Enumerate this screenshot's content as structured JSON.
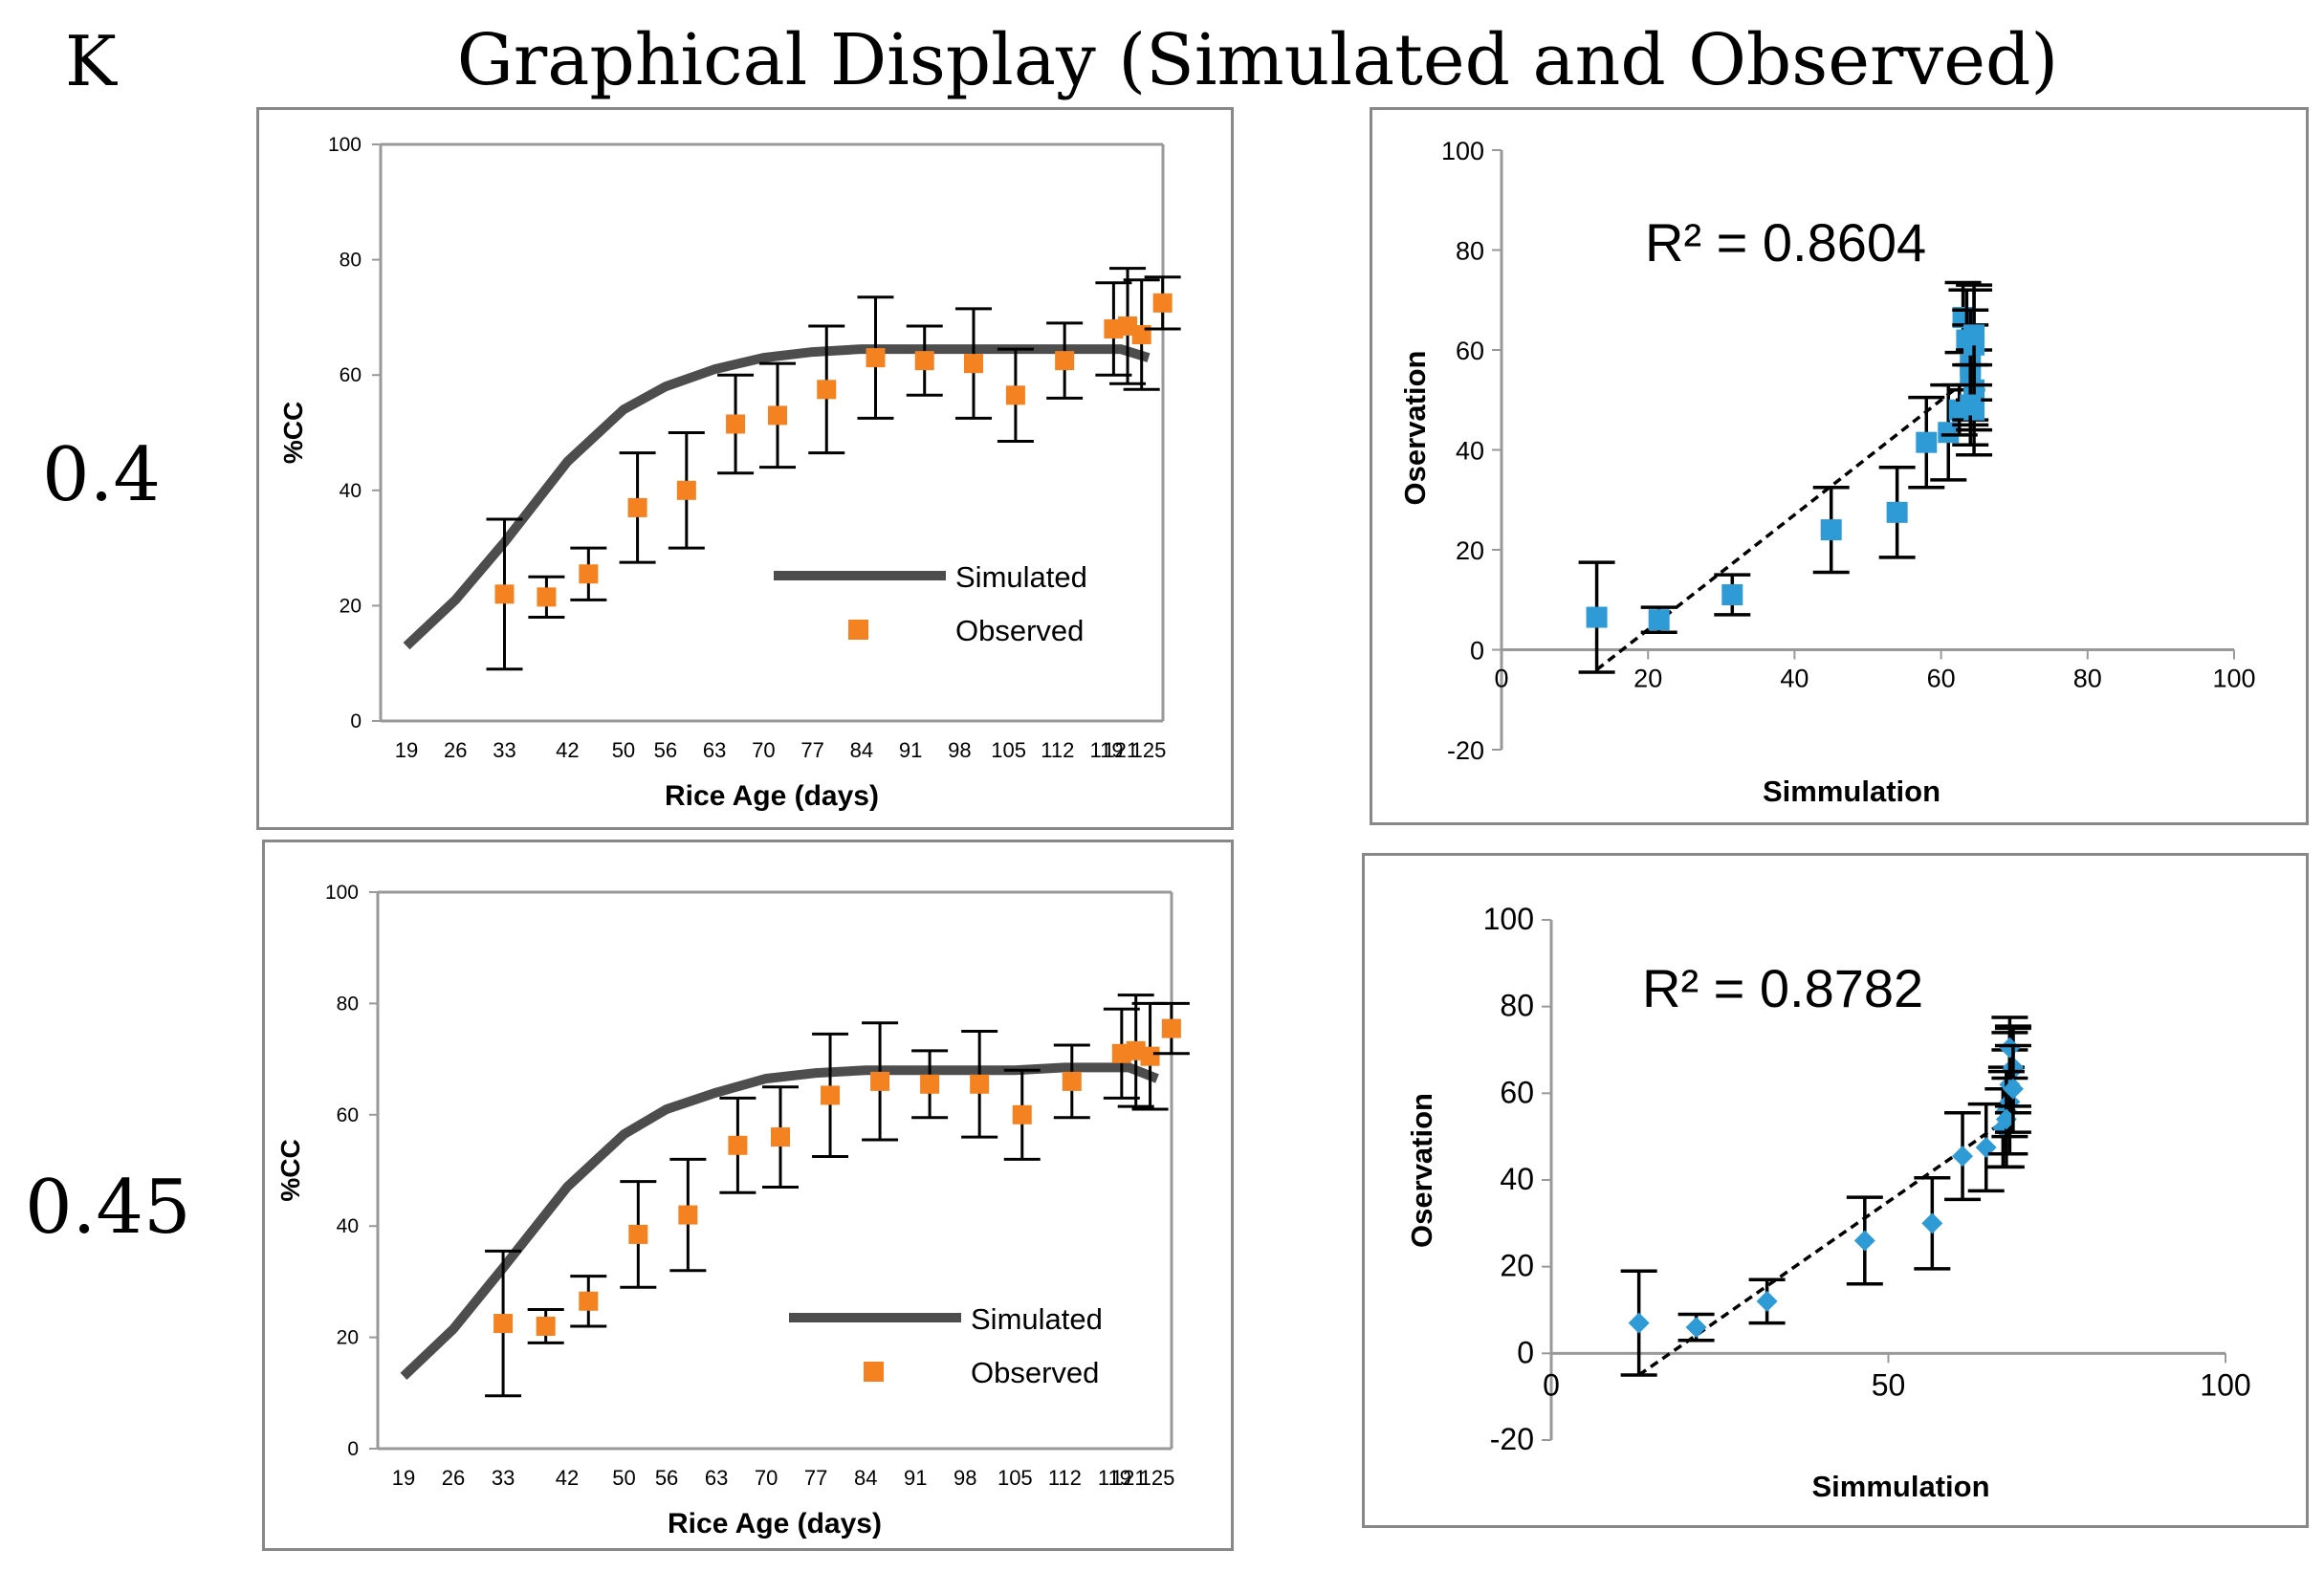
{
  "header": {
    "panel_letter": "K",
    "title": "Graphical Display (Simulated and Observed)"
  },
  "rows": [
    {
      "label": "0.4"
    },
    {
      "label": "0.45"
    }
  ],
  "colors": {
    "simulated": "#4d4d4d",
    "observed": "#f58220",
    "scatter": "#2e9ad6",
    "errorbar": "#000000",
    "frame": "#888888"
  },
  "chart_data": [
    {
      "id": "ts1",
      "type": "line",
      "title": "",
      "xlabel": "Rice Age (days)",
      "ylabel": "%CC",
      "ylim": [
        0,
        100
      ],
      "yticks": [
        "0",
        "20",
        "40",
        "60",
        "80",
        "100"
      ],
      "categories": [
        "19",
        "26",
        "33",
        "42",
        "50",
        "56",
        "63",
        "70",
        "77",
        "84",
        "91",
        "98",
        "105",
        "112",
        "119",
        "121",
        "125"
      ],
      "legend": {
        "simulated": "Simulated",
        "observed": "Observed",
        "position": "bottom-right"
      },
      "series": [
        {
          "name": "Simulated",
          "x": [
            19,
            26,
            33,
            42,
            50,
            56,
            63,
            70,
            77,
            84,
            91,
            98,
            105,
            112,
            119,
            121,
            125
          ],
          "values": [
            13,
            21,
            31,
            45,
            54,
            58,
            61,
            63,
            64,
            64.5,
            64.5,
            64.5,
            64.5,
            64.5,
            64.5,
            64.5,
            63
          ]
        },
        {
          "name": "Observed",
          "x": [
            33,
            39,
            45,
            52,
            59,
            66,
            72,
            79,
            86,
            93,
            100,
            106,
            113,
            120,
            122,
            124,
            127
          ],
          "values": [
            22,
            21.5,
            25.5,
            37,
            40,
            51.5,
            53,
            57.5,
            63,
            62.5,
            62,
            56.5,
            62.5,
            68,
            68.5,
            67,
            72.5
          ],
          "err": [
            13,
            3.5,
            4.5,
            9.5,
            10,
            8.5,
            9,
            11,
            10.5,
            6,
            9.5,
            8,
            6.5,
            8,
            10,
            9.5,
            4.5
          ]
        }
      ]
    },
    {
      "id": "sc1",
      "type": "scatter",
      "xlabel": "Simmulation",
      "ylabel": "Oservation",
      "xlim": [
        0,
        100
      ],
      "ylim": [
        -20,
        100
      ],
      "xticks": [
        "0",
        "20",
        "40",
        "60",
        "80",
        "100"
      ],
      "yticks": [
        "-20",
        "0",
        "20",
        "40",
        "60",
        "80",
        "100"
      ],
      "annotation": "R² = 0.8604",
      "r_squared": 0.8604,
      "trendline": {
        "x": [
          13,
          63.5
        ],
        "y": [
          -4,
          54
        ]
      },
      "points": {
        "x": [
          13,
          21.5,
          31.5,
          45,
          54,
          58,
          61,
          62.5,
          63,
          63.5,
          64,
          64,
          64.5,
          64.5,
          64.5,
          64.5,
          64
        ],
        "y": [
          6.5,
          6,
          11,
          24,
          27.5,
          41.5,
          43.5,
          48,
          66.5,
          62,
          57,
          55,
          52,
          48,
          61,
          63,
          49
        ],
        "err": [
          11,
          2.5,
          4,
          8.5,
          9,
          9,
          9.5,
          5,
          7,
          10,
          11,
          10,
          8,
          9,
          11,
          10,
          8
        ]
      }
    },
    {
      "id": "ts2",
      "type": "line",
      "title": "",
      "xlabel": "Rice Age (days)",
      "ylabel": "%CC",
      "ylim": [
        0,
        100
      ],
      "yticks": [
        "0",
        "20",
        "40",
        "60",
        "80",
        "100"
      ],
      "categories": [
        "19",
        "26",
        "33",
        "42",
        "50",
        "56",
        "63",
        "70",
        "77",
        "84",
        "91",
        "98",
        "105",
        "112",
        "119",
        "121",
        "125"
      ],
      "legend": {
        "simulated": "Simulated",
        "observed": "Observed",
        "position": "bottom-right"
      },
      "series": [
        {
          "name": "Simulated",
          "x": [
            19,
            26,
            33,
            42,
            50,
            56,
            63,
            70,
            77,
            84,
            91,
            98,
            105,
            112,
            119,
            121,
            125
          ],
          "values": [
            13,
            21.5,
            32.5,
            47,
            56.5,
            61,
            64,
            66.5,
            67.5,
            68,
            68,
            68,
            68,
            68.5,
            68.5,
            68.5,
            66.5
          ]
        },
        {
          "name": "Observed",
          "x": [
            33,
            39,
            45,
            52,
            59,
            66,
            72,
            79,
            86,
            93,
            100,
            106,
            113,
            120,
            122,
            124,
            127
          ],
          "values": [
            22.5,
            22,
            26.5,
            38.5,
            42,
            54.5,
            56,
            63.5,
            66,
            65.5,
            65.5,
            60,
            66,
            71,
            71.5,
            70.5,
            75.5
          ],
          "err": [
            13,
            3,
            4.5,
            9.5,
            10,
            8.5,
            9,
            11,
            10.5,
            6,
            9.5,
            8,
            6.5,
            8,
            10,
            9.5,
            4.5
          ]
        }
      ]
    },
    {
      "id": "sc2",
      "type": "scatter",
      "xlabel": "Simmulation",
      "ylabel": "Oservation",
      "xlim": [
        0,
        100
      ],
      "ylim": [
        -20,
        100
      ],
      "xticks": [
        "0",
        "50",
        "100"
      ],
      "yticks": [
        "-20",
        "0",
        "20",
        "40",
        "60",
        "80",
        "100"
      ],
      "annotation": "R² = 0.8782",
      "r_squared": 0.8782,
      "trendline": {
        "x": [
          13,
          68.5
        ],
        "y": [
          -5,
          55
        ]
      },
      "points": {
        "x": [
          13,
          21.5,
          32,
          46.5,
          56.5,
          61,
          64.5,
          67,
          67.5,
          68,
          68,
          68.5,
          68.5,
          68,
          67.5,
          68.5
        ],
        "y": [
          7,
          6,
          12,
          26,
          30,
          45.5,
          47.5,
          52,
          56,
          58,
          62,
          65.5,
          66,
          70.5,
          54,
          61
        ],
        "err": [
          12,
          3,
          5,
          10,
          10.5,
          10,
          10,
          9,
          10,
          12,
          12,
          10,
          9,
          7,
          11,
          10
        ]
      }
    }
  ]
}
